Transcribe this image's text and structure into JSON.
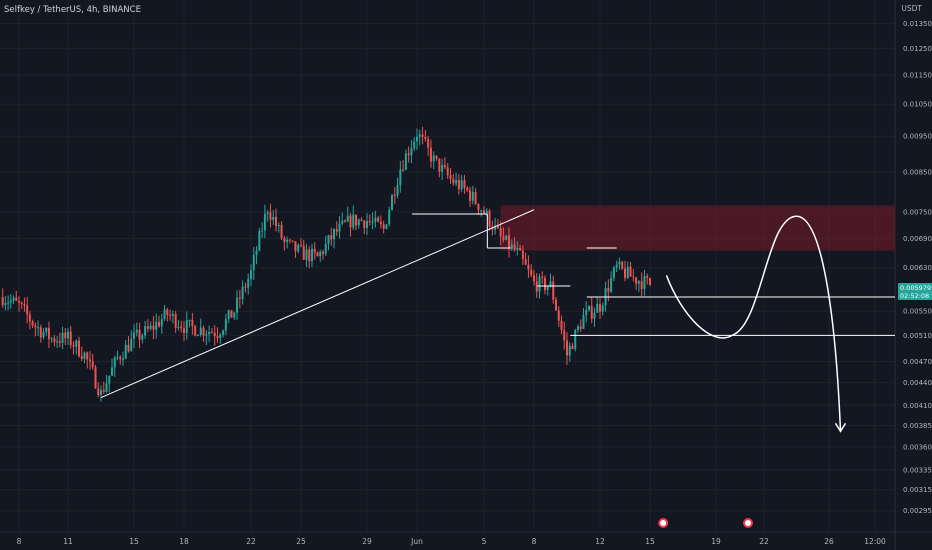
{
  "header": {
    "title": "Selfkey / TetherUS, 4h, BINANCE"
  },
  "axis": {
    "currency": "USDT"
  },
  "price_tag": {
    "price": "0.005979",
    "countdown": "02:52:08"
  },
  "colors": {
    "background": "#131722",
    "up": "#26a69a",
    "down": "#ef5350",
    "grid": "#1e222d",
    "axis_text": "#b2b5be",
    "annotation": "#ffffff",
    "supply_zone": "rgba(120,28,40,0.55)"
  },
  "chart_data": {
    "type": "candlestick",
    "symbol": "Selfkey / TetherUS",
    "interval": "4h",
    "exchange": "BINANCE",
    "y_scale": "log",
    "yticks": [
      "0.013500",
      "0.012500",
      "0.011500",
      "0.010500",
      "0.009500",
      "0.008500",
      "0.007500",
      "0.006900",
      "0.006300",
      "0.005500",
      "0.005100",
      "0.004700",
      "0.004400",
      "0.004100",
      "0.003850",
      "0.003600",
      "0.003350",
      "0.003150",
      "0.002950"
    ],
    "xticks": [
      "8",
      "11",
      "15",
      "18",
      "22",
      "25",
      "29",
      "Jun",
      "5",
      "8",
      "12",
      "15",
      "19",
      "22",
      "26",
      "12:00"
    ],
    "last_price": 0.005979,
    "countdown": "02:52:08",
    "events_icons": [
      "earnings-icon",
      "earnings-icon"
    ],
    "price_path": [
      {
        "date": "May 7",
        "close": 0.00575
      },
      {
        "date": "May 8",
        "close": 0.0056
      },
      {
        "date": "May 9",
        "close": 0.00525
      },
      {
        "date": "May 10",
        "close": 0.00505
      },
      {
        "date": "May 11",
        "close": 0.00505
      },
      {
        "date": "May 12",
        "close": 0.0048
      },
      {
        "date": "May 13",
        "close": 0.00425
      },
      {
        "date": "May 14",
        "close": 0.00475
      },
      {
        "date": "May 15",
        "close": 0.00505
      },
      {
        "date": "May 16",
        "close": 0.0052
      },
      {
        "date": "May 17",
        "close": 0.00545
      },
      {
        "date": "May 18",
        "close": 0.00525
      },
      {
        "date": "May 19",
        "close": 0.0052
      },
      {
        "date": "May 20",
        "close": 0.00515
      },
      {
        "date": "May 21",
        "close": 0.0055
      },
      {
        "date": "May 22",
        "close": 0.0062
      },
      {
        "date": "May 23",
        "close": 0.0076
      },
      {
        "date": "May 24",
        "close": 0.0068
      },
      {
        "date": "May 25",
        "close": 0.0066
      },
      {
        "date": "May 26",
        "close": 0.0065
      },
      {
        "date": "May 27",
        "close": 0.007
      },
      {
        "date": "May 28",
        "close": 0.0073
      },
      {
        "date": "May 29",
        "close": 0.0073
      },
      {
        "date": "May 30",
        "close": 0.0071
      },
      {
        "date": "May 31",
        "close": 0.0086
      },
      {
        "date": "Jun 1",
        "close": 0.0096
      },
      {
        "date": "Jun 2",
        "close": 0.0088
      },
      {
        "date": "Jun 3",
        "close": 0.0083
      },
      {
        "date": "Jun 4",
        "close": 0.008
      },
      {
        "date": "Jun 5",
        "close": 0.0075
      },
      {
        "date": "Jun 6",
        "close": 0.0069
      },
      {
        "date": "Jun 7",
        "close": 0.0066
      },
      {
        "date": "Jun 8",
        "close": 0.006
      },
      {
        "date": "Jun 9",
        "close": 0.00595
      },
      {
        "date": "Jun 10",
        "close": 0.0048
      },
      {
        "date": "Jun 11",
        "close": 0.0054
      },
      {
        "date": "Jun 12",
        "close": 0.0056
      },
      {
        "date": "Jun 13",
        "close": 0.0063
      },
      {
        "date": "Jun 14",
        "close": 0.0061
      },
      {
        "date": "Jun 15",
        "close": 0.00598
      }
    ],
    "annotations": {
      "supply_zone": {
        "from_date": "Jun 6",
        "to_date": "Jun 27",
        "price_low": 0.00665,
        "price_high": 0.00765
      },
      "trendline": {
        "from": {
          "date": "May 13",
          "price": 0.0042
        },
        "to": {
          "date": "Jun 8",
          "price": 0.00755
        }
      },
      "support_lines": [
        0.00575,
        0.0051
      ],
      "projection": "dip-then-rally-into-zone-then-drop",
      "projection_target": 0.00372
    }
  }
}
